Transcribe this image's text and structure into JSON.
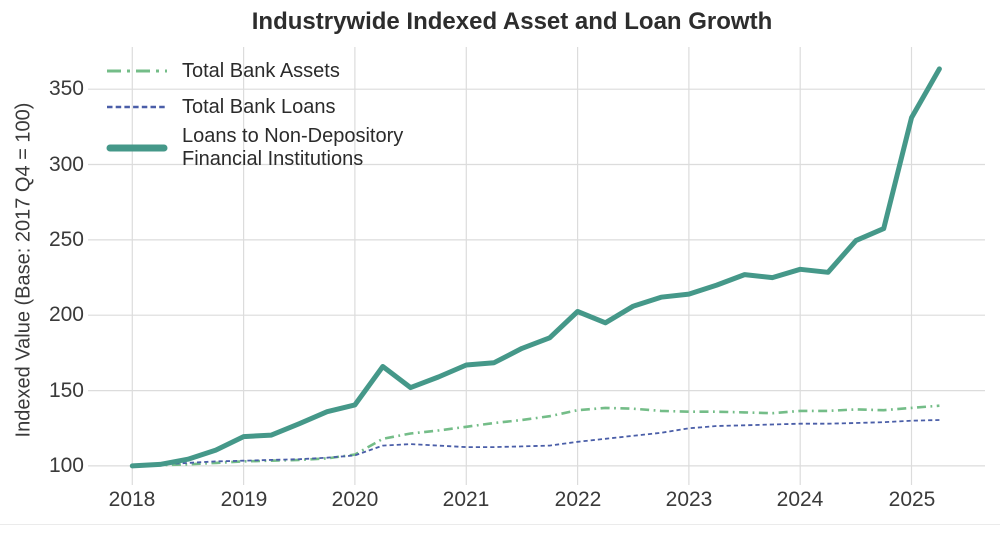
{
  "chart_data": {
    "type": "line",
    "title": "Industrywide Indexed Asset and Loan Growth",
    "xlabel": "",
    "ylabel": "Indexed Value (Base: 2017 Q4 = 100)",
    "x_tick_labels": [
      "2018",
      "2019",
      "2020",
      "2021",
      "2022",
      "2023",
      "2024",
      "2025"
    ],
    "x_tick_values": [
      2018,
      2019,
      2020,
      2021,
      2022,
      2023,
      2024,
      2025
    ],
    "y_tick_labels": [
      "100",
      "150",
      "200",
      "250",
      "300",
      "350"
    ],
    "y_tick_values": [
      100,
      150,
      200,
      250,
      300,
      350
    ],
    "xlim": [
      2017.62,
      2025.66
    ],
    "ylim": [
      92,
      378
    ],
    "grid": "on",
    "legend_position": "upper-left",
    "x_frequency": "quarterly",
    "x": [
      2018.0,
      2018.25,
      2018.5,
      2018.75,
      2019.0,
      2019.25,
      2019.5,
      2019.75,
      2020.0,
      2020.25,
      2020.5,
      2020.75,
      2021.0,
      2021.25,
      2021.5,
      2021.75,
      2022.0,
      2022.25,
      2022.5,
      2022.75,
      2023.0,
      2023.25,
      2023.5,
      2023.75,
      2024.0,
      2024.25,
      2024.5,
      2024.75,
      2025.0,
      2025.25
    ],
    "series": [
      {
        "name": "Total Bank Assets",
        "legend_label": "Total Bank Assets",
        "color": "#74bd88",
        "line_style": "dashdot",
        "line_width": 2.6,
        "values": [
          100,
          100.5,
          101,
          102,
          103,
          103.5,
          104,
          105,
          107.5,
          118,
          121.5,
          123.5,
          126,
          128.5,
          130.5,
          133,
          137,
          138.5,
          138,
          136.5,
          136,
          136,
          135.5,
          135,
          136.5,
          136.5,
          137.5,
          137,
          138.5,
          140
        ]
      },
      {
        "name": "Total Bank Loans",
        "legend_label": "Total Bank Loans",
        "color": "#4a5ea8",
        "line_style": "dashed",
        "line_width": 1.8,
        "values": [
          100,
          101,
          102,
          103,
          103.5,
          104,
          104.5,
          105.5,
          107,
          113.5,
          114.5,
          113.5,
          112.5,
          112.5,
          113,
          113.5,
          116,
          118,
          120,
          122,
          125,
          126.5,
          127,
          127.5,
          128,
          128,
          128.5,
          129,
          130,
          130.5
        ]
      },
      {
        "name": "Loans to Non-Depository Financial Institutions",
        "legend_label": "Loans to Non-Depository\nFinancial Institutions",
        "color": "#459889",
        "line_style": "solid",
        "line_width": 5,
        "values": [
          100,
          101,
          104.5,
          110.5,
          119.5,
          120.5,
          128,
          136,
          140.5,
          166,
          152,
          159,
          167,
          168.5,
          178,
          185,
          202.5,
          195,
          206,
          212,
          214,
          220,
          227,
          225,
          230.5,
          228.5,
          249.5,
          257.5,
          331,
          363.5
        ]
      }
    ],
    "colors": {
      "grid": "#dcdcdc",
      "tick_label": "#3a3a3a",
      "title": "#2d2d2d",
      "axis_label": "#3a3a3a",
      "background": "#ffffff"
    }
  }
}
